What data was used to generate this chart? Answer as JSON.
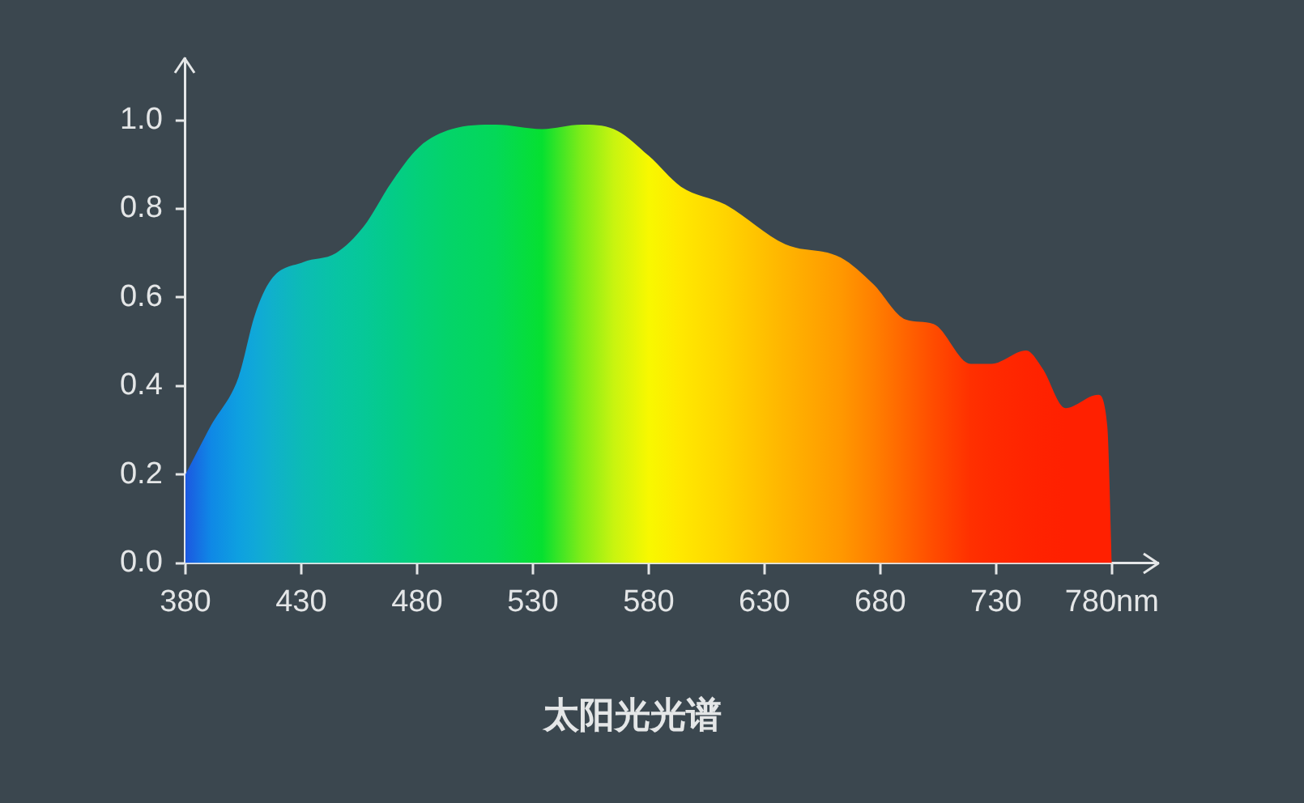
{
  "chart_data": {
    "type": "area",
    "title": "太阳光光谱",
    "series": [
      {
        "x": [
          380,
          391,
          403,
          410,
          417,
          431,
          445,
          457,
          469,
          481,
          495,
          514,
          534,
          551,
          565,
          580,
          594,
          613,
          639,
          663,
          677,
          691,
          703,
          719,
          728,
          743,
          750,
          760,
          774,
          778,
          780
        ],
        "values": [
          0.2,
          0.31,
          0.42,
          0.56,
          0.64,
          0.68,
          0.7,
          0.76,
          0.86,
          0.94,
          0.98,
          0.99,
          0.98,
          0.99,
          0.98,
          0.92,
          0.85,
          0.81,
          0.72,
          0.69,
          0.63,
          0.55,
          0.54,
          0.45,
          0.45,
          0.48,
          0.44,
          0.35,
          0.38,
          0.31,
          0
        ],
        "colors": [
          "#1c58e0",
          "#0f88e6",
          "#0ea0e0",
          "#10a8d8",
          "#10b0cc",
          "#0cbcb4",
          "#08c4a4",
          "#06c898",
          "#04cc88",
          "#04d078",
          "#04d468",
          "#04d858",
          "#06e030",
          "#80ec18",
          "#c8f410",
          "#f8f800",
          "#ffe800",
          "#ffd400",
          "#ffb400",
          "#ff9800",
          "#ff8000",
          "#ff6400",
          "#ff4c00",
          "#ff3000",
          "#ff2a00",
          "#ff2400",
          "#ff2200",
          "#ff2000",
          "#ff2000",
          "#ff2000",
          "#ff2000"
        ]
      }
    ],
    "xlim": [
      380,
      800
    ],
    "xticks": [
      380,
      430,
      480,
      530,
      580,
      630,
      680,
      730,
      {
        "value": 780,
        "label": "780nm"
      }
    ],
    "ylim": [
      0,
      1.14
    ],
    "yticks": [
      {
        "value": 0,
        "label": "0.0"
      },
      {
        "value": 0.2,
        "label": "0.2"
      },
      {
        "value": 0.4,
        "label": "0.4"
      },
      {
        "value": 0.6,
        "label": "0.6"
      },
      {
        "value": 0.8,
        "label": "0.8"
      },
      {
        "value": 1,
        "label": "1.0"
      }
    ],
    "grid": false,
    "legend": false
  }
}
